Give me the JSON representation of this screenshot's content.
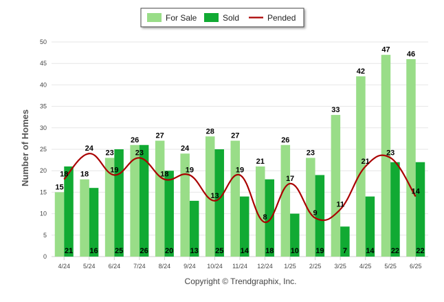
{
  "chart_data": {
    "type": "bar",
    "categories": [
      "4/24",
      "5/24",
      "6/24",
      "7/24",
      "8/24",
      "9/24",
      "10/24",
      "11/24",
      "12/24",
      "1/25",
      "2/25",
      "3/25",
      "4/25",
      "5/25",
      "6/25"
    ],
    "series": [
      {
        "name": "For Sale",
        "type": "bar",
        "color": "#99dd88",
        "values": [
          15,
          18,
          23,
          26,
          27,
          24,
          28,
          27,
          21,
          26,
          23,
          33,
          42,
          47,
          46
        ]
      },
      {
        "name": "Sold",
        "type": "bar",
        "color": "#11aa33",
        "values": [
          21,
          16,
          25,
          26,
          20,
          13,
          25,
          14,
          18,
          10,
          19,
          7,
          14,
          22,
          22
        ]
      },
      {
        "name": "Pended",
        "type": "line",
        "color": "#aa0000",
        "values": [
          18,
          24,
          19,
          23,
          18,
          19,
          13,
          19,
          8,
          17,
          9,
          11,
          21,
          23,
          14
        ]
      }
    ],
    "ylabel": "Number of Homes",
    "xlabel": "",
    "ylim": [
      0,
      50
    ],
    "yticks": [
      0,
      5,
      10,
      15,
      20,
      25,
      30,
      35,
      40,
      45,
      50
    ],
    "grid": true,
    "legend_position": "top-center",
    "footer": "Copyright © Trendgraphix, Inc."
  }
}
